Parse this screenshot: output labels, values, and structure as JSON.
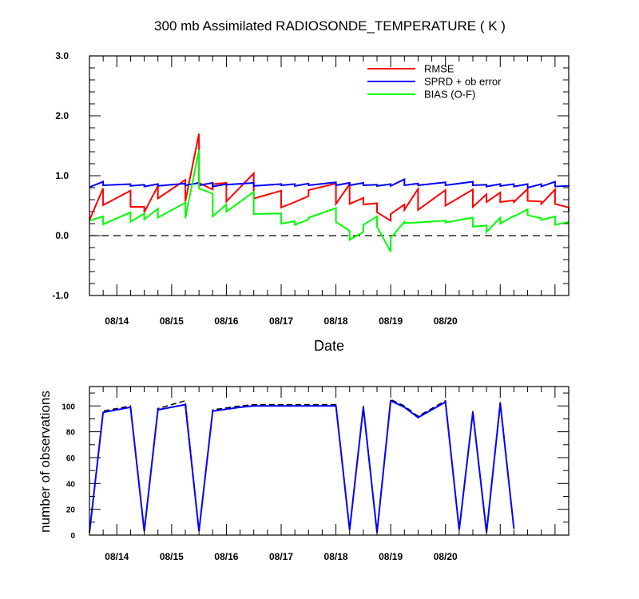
{
  "chart_data": [
    {
      "type": "line",
      "title": "300 mb Assimilated RADIOSONDE_TEMPERATURE ( K )",
      "xlabel": "Date",
      "ylabel": "",
      "ylim": [
        -1.0,
        3.0
      ],
      "yticks": [
        "3.0",
        "2.0",
        "1.0",
        "0.0",
        "-1.0"
      ],
      "xticks": [
        "08/14",
        "08/15",
        "08/16",
        "08/17",
        "08/18",
        "08/19",
        "08/20"
      ],
      "legend_position": "top-right",
      "reference_line": {
        "y": 0.0,
        "style": "dashed"
      },
      "series": [
        {
          "name": "RMSE",
          "color": "#ff0000",
          "points": [
            [
              0.0,
              0.26
            ],
            [
              0.25,
              0.79
            ],
            [
              0.25,
              0.51
            ],
            [
              0.75,
              0.75
            ],
            [
              0.75,
              0.48
            ],
            [
              1.0,
              0.48
            ],
            [
              1.0,
              0.39
            ],
            [
              1.25,
              0.83
            ],
            [
              1.25,
              0.62
            ],
            [
              1.75,
              0.93
            ],
            [
              1.75,
              0.57
            ],
            [
              2.0,
              1.7
            ],
            [
              2.0,
              0.88
            ],
            [
              2.25,
              0.77
            ],
            [
              2.25,
              0.86
            ],
            [
              2.5,
              0.88
            ],
            [
              2.5,
              0.57
            ],
            [
              3.0,
              1.04
            ],
            [
              3.0,
              0.62
            ],
            [
              3.5,
              0.75
            ],
            [
              3.5,
              0.47
            ],
            [
              3.75,
              0.56
            ],
            [
              3.75,
              0.56
            ],
            [
              4.0,
              0.66
            ],
            [
              4.0,
              0.76
            ],
            [
              4.5,
              0.87
            ],
            [
              4.5,
              0.53
            ],
            [
              4.75,
              0.86
            ],
            [
              4.75,
              0.53
            ],
            [
              5.0,
              0.63
            ],
            [
              5.0,
              0.52
            ],
            [
              5.25,
              0.54
            ],
            [
              5.25,
              0.39
            ],
            [
              5.5,
              0.25
            ],
            [
              5.5,
              0.36
            ],
            [
              5.75,
              0.52
            ],
            [
              5.75,
              0.43
            ],
            [
              6.0,
              0.78
            ],
            [
              6.0,
              0.43
            ],
            [
              6.5,
              0.76
            ],
            [
              6.5,
              0.5
            ],
            [
              7.0,
              0.77
            ],
            [
              7.0,
              0.48
            ],
            [
              7.25,
              0.69
            ],
            [
              7.25,
              0.56
            ],
            [
              7.5,
              0.72
            ],
            [
              7.5,
              0.56
            ],
            [
              7.75,
              0.59
            ],
            [
              7.75,
              0.56
            ],
            [
              8.0,
              0.78
            ],
            [
              8.0,
              0.58
            ],
            [
              8.25,
              0.57
            ],
            [
              8.25,
              0.53
            ],
            [
              8.5,
              0.77
            ],
            [
              8.5,
              0.53
            ],
            [
              8.75,
              0.47
            ],
            [
              8.75,
              0.41
            ]
          ]
        },
        {
          "name": "SPRD + ob error",
          "color": "#0000ff",
          "points": [
            [
              0.0,
              0.81
            ],
            [
              0.25,
              0.9
            ],
            [
              0.25,
              0.84
            ],
            [
              0.75,
              0.86
            ],
            [
              0.75,
              0.83
            ],
            [
              1.0,
              0.85
            ],
            [
              1.0,
              0.82
            ],
            [
              1.25,
              0.86
            ],
            [
              1.25,
              0.83
            ],
            [
              1.75,
              0.87
            ],
            [
              1.75,
              0.84
            ],
            [
              2.0,
              0.88
            ],
            [
              2.0,
              0.84
            ],
            [
              2.25,
              0.88
            ],
            [
              2.25,
              0.82
            ],
            [
              2.5,
              0.86
            ],
            [
              2.5,
              0.85
            ],
            [
              3.0,
              0.88
            ],
            [
              3.0,
              0.83
            ],
            [
              3.5,
              0.86
            ],
            [
              3.5,
              0.84
            ],
            [
              3.75,
              0.86
            ],
            [
              3.75,
              0.83
            ],
            [
              4.0,
              0.87
            ],
            [
              4.0,
              0.84
            ],
            [
              4.5,
              0.89
            ],
            [
              4.5,
              0.84
            ],
            [
              4.75,
              0.88
            ],
            [
              4.75,
              0.84
            ],
            [
              5.0,
              0.88
            ],
            [
              5.0,
              0.84
            ],
            [
              5.25,
              0.85
            ],
            [
              5.25,
              0.83
            ],
            [
              5.5,
              0.86
            ],
            [
              5.5,
              0.83
            ],
            [
              5.75,
              0.94
            ],
            [
              5.75,
              0.84
            ],
            [
              6.0,
              0.87
            ],
            [
              6.0,
              0.84
            ],
            [
              6.5,
              0.89
            ],
            [
              6.5,
              0.84
            ],
            [
              7.0,
              0.9
            ],
            [
              7.0,
              0.84
            ],
            [
              7.25,
              0.85
            ],
            [
              7.25,
              0.82
            ],
            [
              7.5,
              0.86
            ],
            [
              7.5,
              0.83
            ],
            [
              7.75,
              0.86
            ],
            [
              7.75,
              0.82
            ],
            [
              8.0,
              0.86
            ],
            [
              8.0,
              0.8
            ],
            [
              8.25,
              0.86
            ],
            [
              8.25,
              0.82
            ],
            [
              8.5,
              0.9
            ],
            [
              8.5,
              0.82
            ],
            [
              8.75,
              0.83
            ],
            [
              8.75,
              0.82
            ]
          ]
        },
        {
          "name": "BIAS (O-F)",
          "color": "#00ff00",
          "points": [
            [
              0.0,
              0.25
            ],
            [
              0.25,
              0.32
            ],
            [
              0.25,
              0.19
            ],
            [
              0.75,
              0.39
            ],
            [
              0.75,
              0.23
            ],
            [
              1.0,
              0.37
            ],
            [
              1.0,
              0.27
            ],
            [
              1.25,
              0.45
            ],
            [
              1.25,
              0.3
            ],
            [
              1.75,
              0.55
            ],
            [
              1.75,
              0.29
            ],
            [
              2.0,
              1.43
            ],
            [
              2.0,
              0.79
            ],
            [
              2.25,
              0.7
            ],
            [
              2.25,
              0.32
            ],
            [
              2.5,
              0.52
            ],
            [
              2.5,
              0.4
            ],
            [
              3.0,
              0.73
            ],
            [
              3.0,
              0.36
            ],
            [
              3.5,
              0.37
            ],
            [
              3.5,
              0.2
            ],
            [
              3.75,
              0.24
            ],
            [
              3.75,
              0.18
            ],
            [
              4.0,
              0.27
            ],
            [
              4.0,
              0.3
            ],
            [
              4.5,
              0.46
            ],
            [
              4.5,
              0.23
            ],
            [
              4.75,
              0.08
            ],
            [
              4.75,
              -0.07
            ],
            [
              5.0,
              0.06
            ],
            [
              5.0,
              0.18
            ],
            [
              5.25,
              0.32
            ],
            [
              5.25,
              0.15
            ],
            [
              5.5,
              -0.27
            ],
            [
              5.5,
              -0.04
            ],
            [
              5.75,
              0.23
            ],
            [
              5.75,
              0.21
            ],
            [
              6.0,
              0.22
            ],
            [
              6.0,
              0.22
            ],
            [
              6.5,
              0.25
            ],
            [
              6.5,
              0.22
            ],
            [
              7.0,
              0.3
            ],
            [
              7.0,
              0.15
            ],
            [
              7.25,
              0.17
            ],
            [
              7.25,
              0.06
            ],
            [
              7.5,
              0.3
            ],
            [
              7.5,
              0.2
            ],
            [
              7.75,
              0.33
            ],
            [
              7.75,
              0.32
            ],
            [
              8.0,
              0.44
            ],
            [
              8.0,
              0.34
            ],
            [
              8.25,
              0.29
            ],
            [
              8.25,
              0.26
            ],
            [
              8.5,
              0.32
            ],
            [
              8.5,
              0.18
            ],
            [
              8.75,
              0.23
            ],
            [
              8.75,
              0.23
            ]
          ]
        }
      ]
    },
    {
      "type": "line",
      "title": "",
      "xlabel": "",
      "ylabel": "number of observations",
      "ylim": [
        0,
        115
      ],
      "yticks": [
        "100",
        "80",
        "60",
        "40",
        "20",
        "0"
      ],
      "xticks": [
        "08/14",
        "08/15",
        "08/16",
        "08/17",
        "08/18",
        "08/19",
        "08/20"
      ],
      "series": [
        {
          "color": "#000000",
          "style": "dashed",
          "points": [
            [
              0.0,
              2
            ],
            [
              0.25,
              96
            ],
            [
              0.75,
              100
            ],
            [
              1.0,
              3
            ],
            [
              1.25,
              98
            ],
            [
              1.75,
              104
            ],
            [
              2.0,
              3
            ],
            [
              2.25,
              97
            ],
            [
              2.75,
              100
            ],
            [
              3.0,
              101
            ],
            [
              3.5,
              101
            ],
            [
              4.0,
              101
            ],
            [
              4.5,
              101
            ],
            [
              4.75,
              4
            ],
            [
              5.0,
              100
            ],
            [
              5.25,
              2
            ],
            [
              5.5,
              105
            ],
            [
              5.75,
              100
            ],
            [
              6.0,
              92
            ],
            [
              6.5,
              104
            ],
            [
              6.75,
              4
            ],
            [
              7.0,
              96
            ],
            [
              7.25,
              2
            ],
            [
              7.5,
              103
            ],
            [
              7.75,
              5
            ]
          ]
        },
        {
          "color": "#0000ff",
          "style": "solid",
          "points": [
            [
              0.0,
              2
            ],
            [
              0.25,
              95
            ],
            [
              0.75,
              99
            ],
            [
              1.0,
              3
            ],
            [
              1.25,
              97
            ],
            [
              1.75,
              101
            ],
            [
              2.0,
              3
            ],
            [
              2.25,
              96
            ],
            [
              2.75,
              99
            ],
            [
              3.0,
              100
            ],
            [
              3.5,
              100
            ],
            [
              4.0,
              100
            ],
            [
              4.5,
              100
            ],
            [
              4.75,
              4
            ],
            [
              5.0,
              99
            ],
            [
              5.25,
              2
            ],
            [
              5.5,
              104
            ],
            [
              5.75,
              99
            ],
            [
              6.0,
              91
            ],
            [
              6.5,
              103
            ],
            [
              6.75,
              4
            ],
            [
              7.0,
              95
            ],
            [
              7.25,
              2
            ],
            [
              7.5,
              102
            ],
            [
              7.75,
              5
            ]
          ]
        }
      ]
    }
  ]
}
